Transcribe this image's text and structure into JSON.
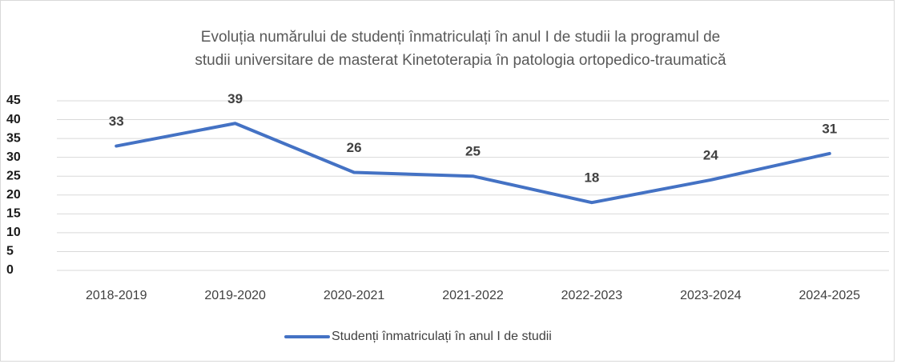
{
  "chart_data": {
    "type": "line",
    "title": [
      "Evoluția numărului de studenți înmatriculați în anul I de studii la programul de",
      "studii universitare de masterat Kinetoterapia în patologia ortopedico-traumatică"
    ],
    "categories": [
      "2018-2019",
      "2019-2020",
      "2020-2021",
      "2021-2022",
      "2022-2023",
      "2023-2024",
      "2024-2025"
    ],
    "series": [
      {
        "name": "Studenți înmatriculați în anul I de studii",
        "color": "#4472c4",
        "values": [
          33,
          39,
          26,
          25,
          18,
          24,
          31
        ]
      }
    ],
    "ylim": [
      0,
      45
    ],
    "yticks": [
      0,
      5,
      10,
      15,
      20,
      25,
      30,
      35,
      40,
      45
    ],
    "grid": true,
    "legend": "bottom"
  }
}
